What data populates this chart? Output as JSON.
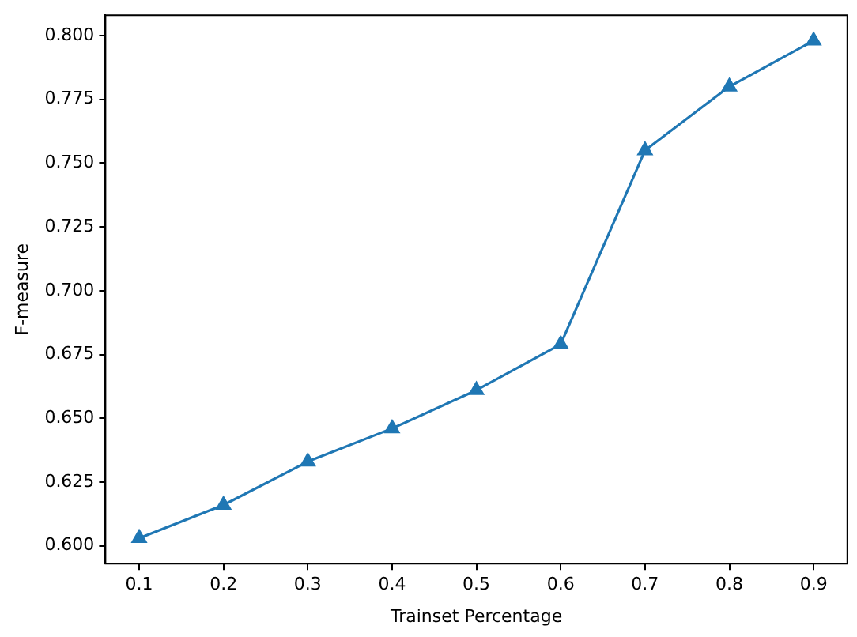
{
  "chart_data": {
    "type": "line",
    "xlabel": "Trainset Percentage",
    "ylabel": "F-measure",
    "x": [
      0.1,
      0.2,
      0.3,
      0.4,
      0.5,
      0.6,
      0.7,
      0.8,
      0.9
    ],
    "series": [
      {
        "color": "#1f77b4",
        "values": [
          0.603,
          0.616,
          0.633,
          0.646,
          0.661,
          0.679,
          0.755,
          0.78,
          0.798
        ]
      }
    ],
    "xlim": [
      0.06,
      0.94
    ],
    "xticks": [
      {
        "value": 0.1,
        "label": "0.1"
      },
      {
        "value": 0.2,
        "label": "0.2"
      },
      {
        "value": 0.3,
        "label": "0.3"
      },
      {
        "value": 0.4,
        "label": "0.4"
      },
      {
        "value": 0.5,
        "label": "0.5"
      },
      {
        "value": 0.6,
        "label": "0.6"
      },
      {
        "value": 0.7,
        "label": "0.7"
      },
      {
        "value": 0.8,
        "label": "0.8"
      },
      {
        "value": 0.9,
        "label": "0.9"
      }
    ],
    "ylim": [
      0.593,
      0.808
    ],
    "yticks": [
      {
        "value": 0.6,
        "label": "0.600"
      },
      {
        "value": 0.625,
        "label": "0.625"
      },
      {
        "value": 0.65,
        "label": "0.650"
      },
      {
        "value": 0.675,
        "label": "0.675"
      },
      {
        "value": 0.7,
        "label": "0.700"
      },
      {
        "value": 0.725,
        "label": "0.725"
      },
      {
        "value": 0.75,
        "label": "0.750"
      },
      {
        "value": 0.775,
        "label": "0.775"
      },
      {
        "value": 0.8,
        "label": "0.800"
      }
    ],
    "grid": false,
    "legend": false,
    "marker": "triangle",
    "line_style": "solid"
  }
}
